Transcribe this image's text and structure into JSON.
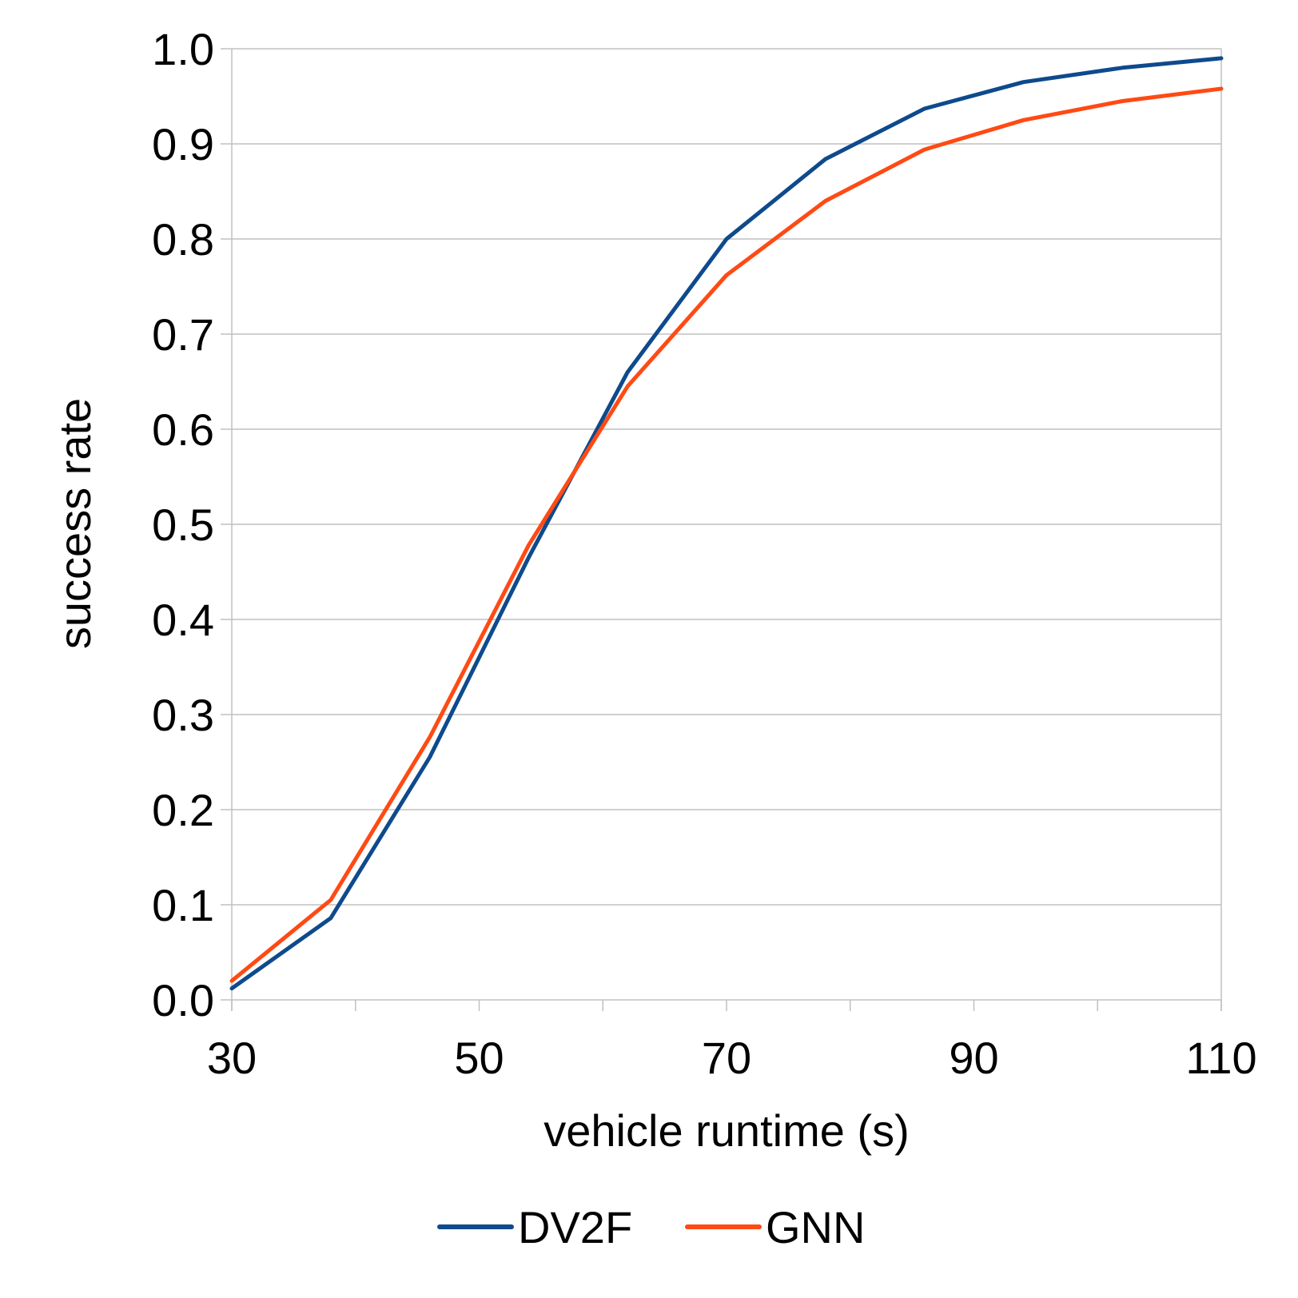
{
  "chart_data": {
    "type": "line",
    "title": "",
    "xlabel": "vehicle runtime (s)",
    "ylabel": "success rate",
    "xlim": [
      30,
      110
    ],
    "ylim": [
      0.0,
      1.0
    ],
    "x_ticks": [
      "30",
      "50",
      "70",
      "90",
      "110"
    ],
    "x_tick_values": [
      30,
      50,
      70,
      90,
      110
    ],
    "y_ticks": [
      "0.0",
      "0.1",
      "0.2",
      "0.3",
      "0.4",
      "0.5",
      "0.6",
      "0.7",
      "0.8",
      "0.9",
      "1.0"
    ],
    "y_tick_values": [
      0.0,
      0.1,
      0.2,
      0.3,
      0.4,
      0.5,
      0.6,
      0.7,
      0.8,
      0.9,
      1.0
    ],
    "grid": "horizontal",
    "legend_position": "bottom",
    "x": [
      30,
      38,
      46,
      54,
      62,
      70,
      78,
      86,
      94,
      102,
      110
    ],
    "series": [
      {
        "name": "DV2F",
        "color": "#0e4a8c",
        "values": [
          0.012,
          0.086,
          0.255,
          0.465,
          0.66,
          0.8,
          0.884,
          0.937,
          0.965,
          0.98,
          0.99
        ]
      },
      {
        "name": "GNN",
        "color": "#ff4a14",
        "values": [
          0.02,
          0.105,
          0.276,
          0.478,
          0.645,
          0.762,
          0.84,
          0.894,
          0.925,
          0.945,
          0.958
        ]
      }
    ]
  }
}
